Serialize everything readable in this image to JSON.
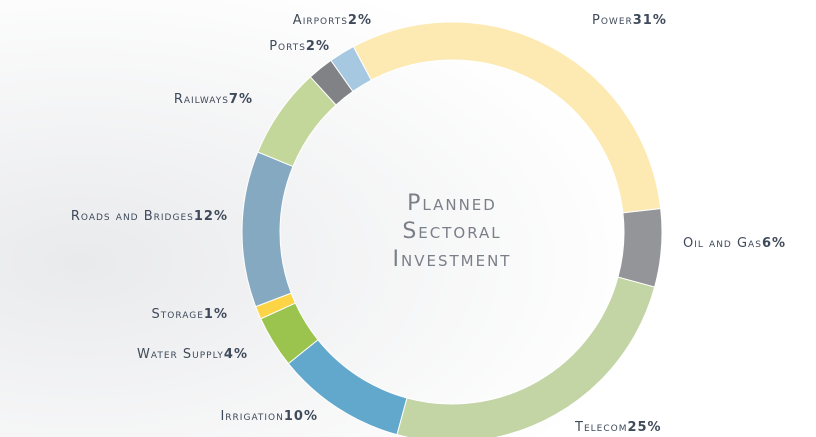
{
  "chart_data": {
    "type": "donut",
    "title": "Planned Sectoral Investment",
    "categories": [
      "Power",
      "Oil and Gas",
      "Telecom",
      "Irrigation",
      "Water Supply",
      "Storage",
      "Roads and Bridges",
      "Railways",
      "Ports",
      "Airports"
    ],
    "values": [
      31,
      6,
      25,
      10,
      4,
      1,
      12,
      7,
      2,
      2
    ],
    "value_labels": [
      "31%",
      "6%",
      "25%",
      "10%",
      "4%",
      "1%",
      "12%",
      "7%",
      "2%",
      "2%"
    ],
    "colors": [
      "#fde9b2",
      "#939598",
      "#c3d4a5",
      "#62a8cc",
      "#9bc44f",
      "#fdd445",
      "#85a9c1",
      "#c3d79a",
      "#808285",
      "#a6c8e0"
    ]
  }
}
